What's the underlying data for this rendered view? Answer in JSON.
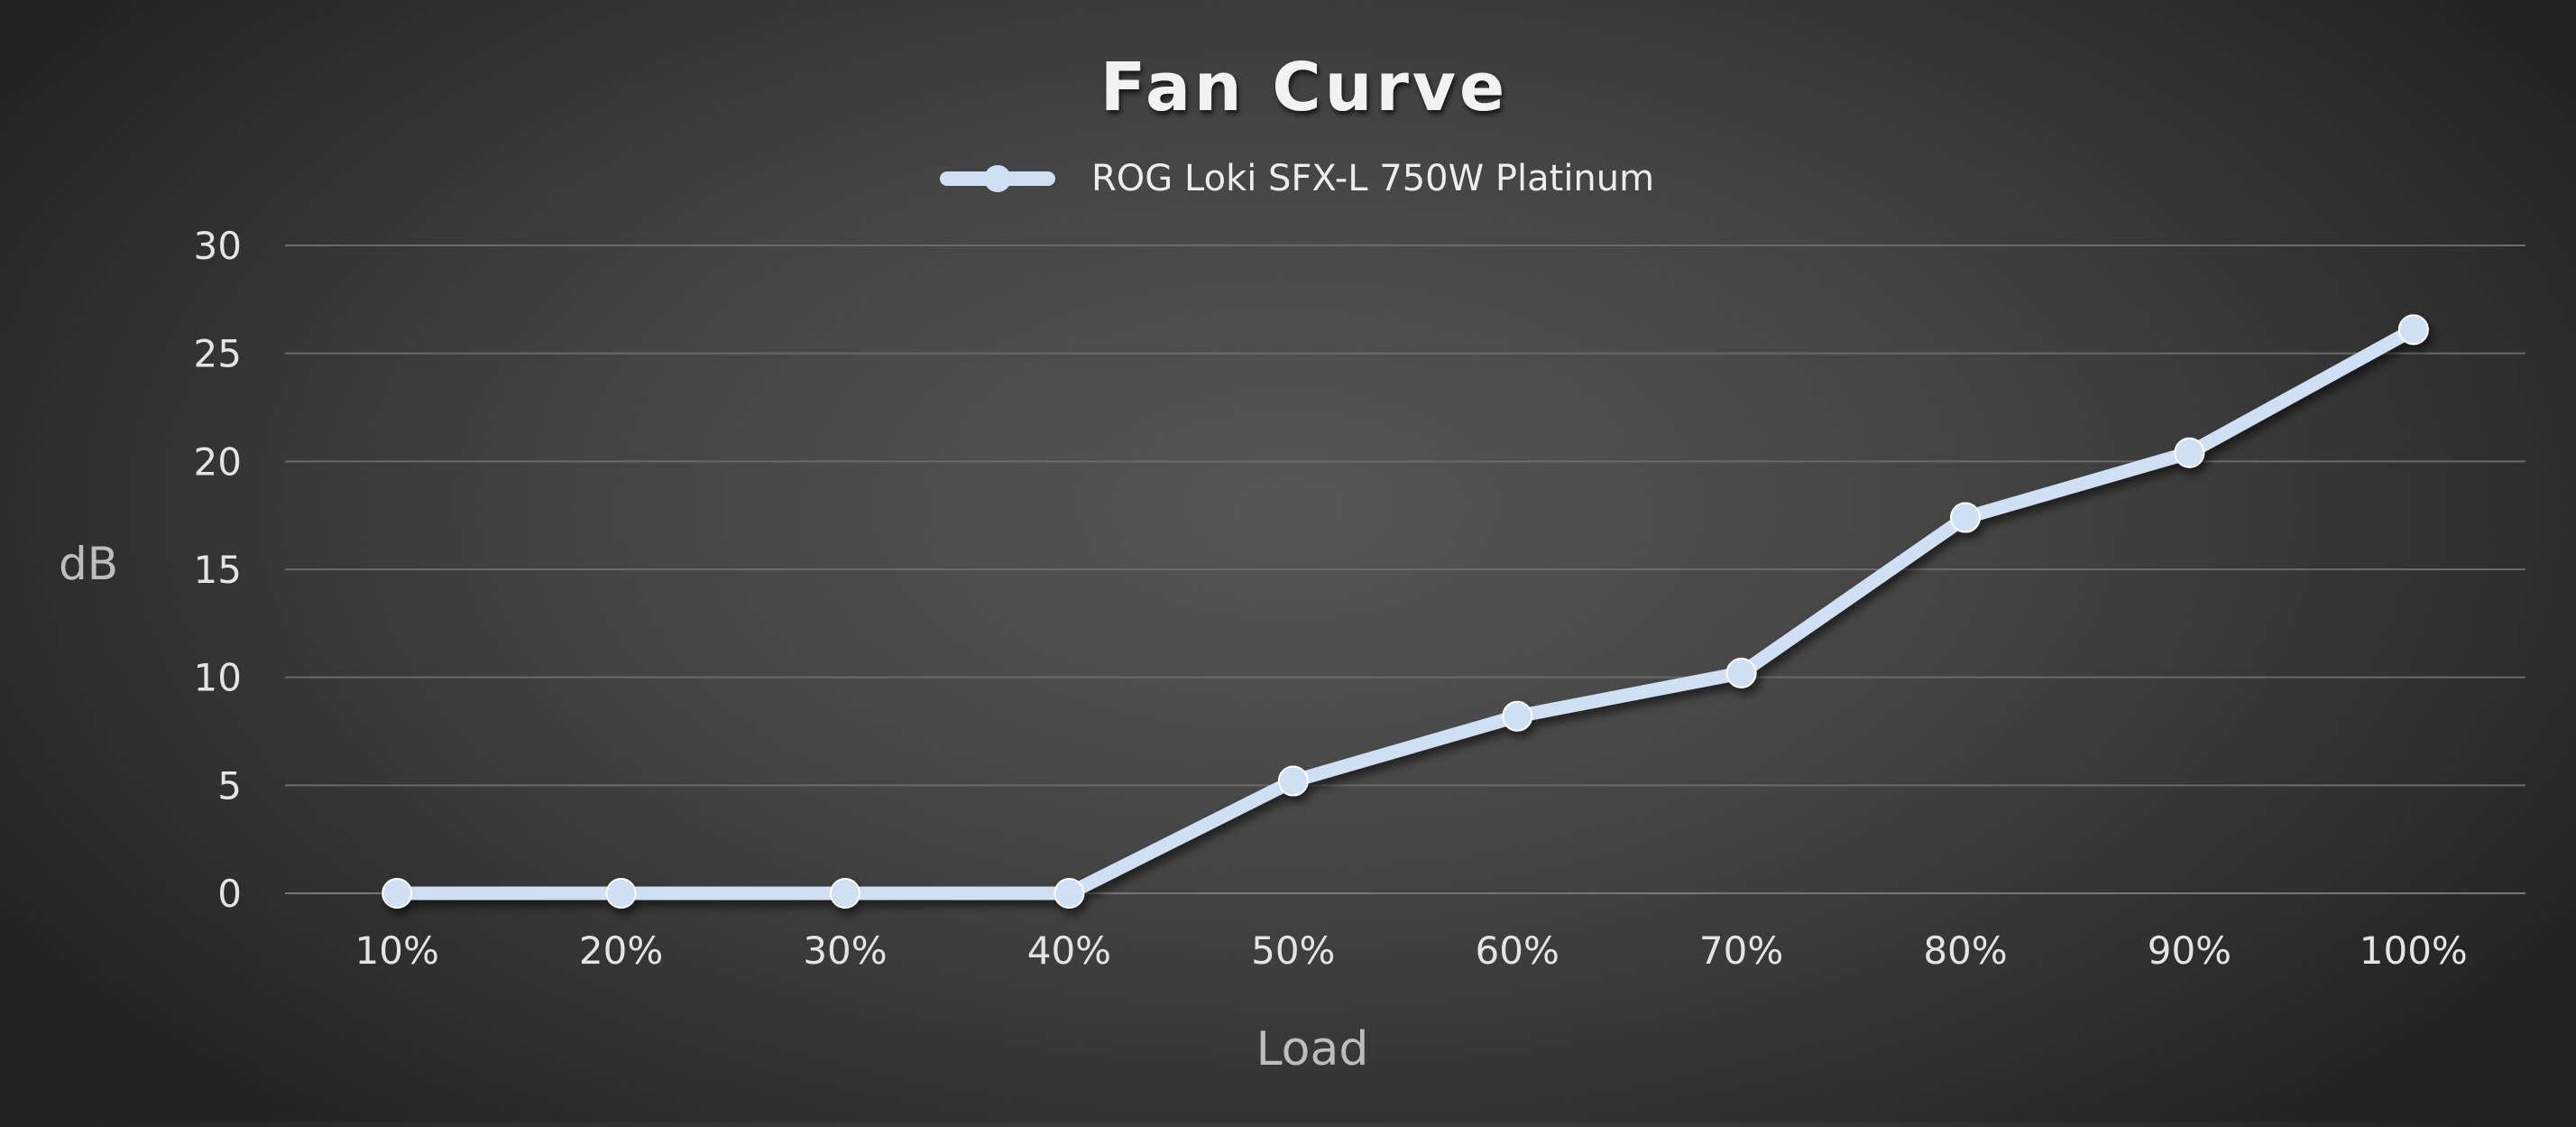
{
  "chart_data": {
    "type": "line",
    "title": "Fan Curve",
    "xlabel": "Load",
    "ylabel": "dB",
    "categories": [
      "10%",
      "20%",
      "30%",
      "40%",
      "50%",
      "60%",
      "70%",
      "80%",
      "90%",
      "100%"
    ],
    "series": [
      {
        "name": "ROG Loki SFX-L 750W Platinum",
        "values": [
          0,
          0,
          0,
          0,
          5.2,
          8.2,
          10.2,
          17.4,
          20.4,
          26.1
        ],
        "color": "#cfe0f4"
      }
    ],
    "yticks": [
      "0",
      "5",
      "10",
      "15",
      "20",
      "25",
      "30"
    ],
    "ylim": [
      0,
      30
    ],
    "grid": true,
    "legend_position": "top-center"
  }
}
